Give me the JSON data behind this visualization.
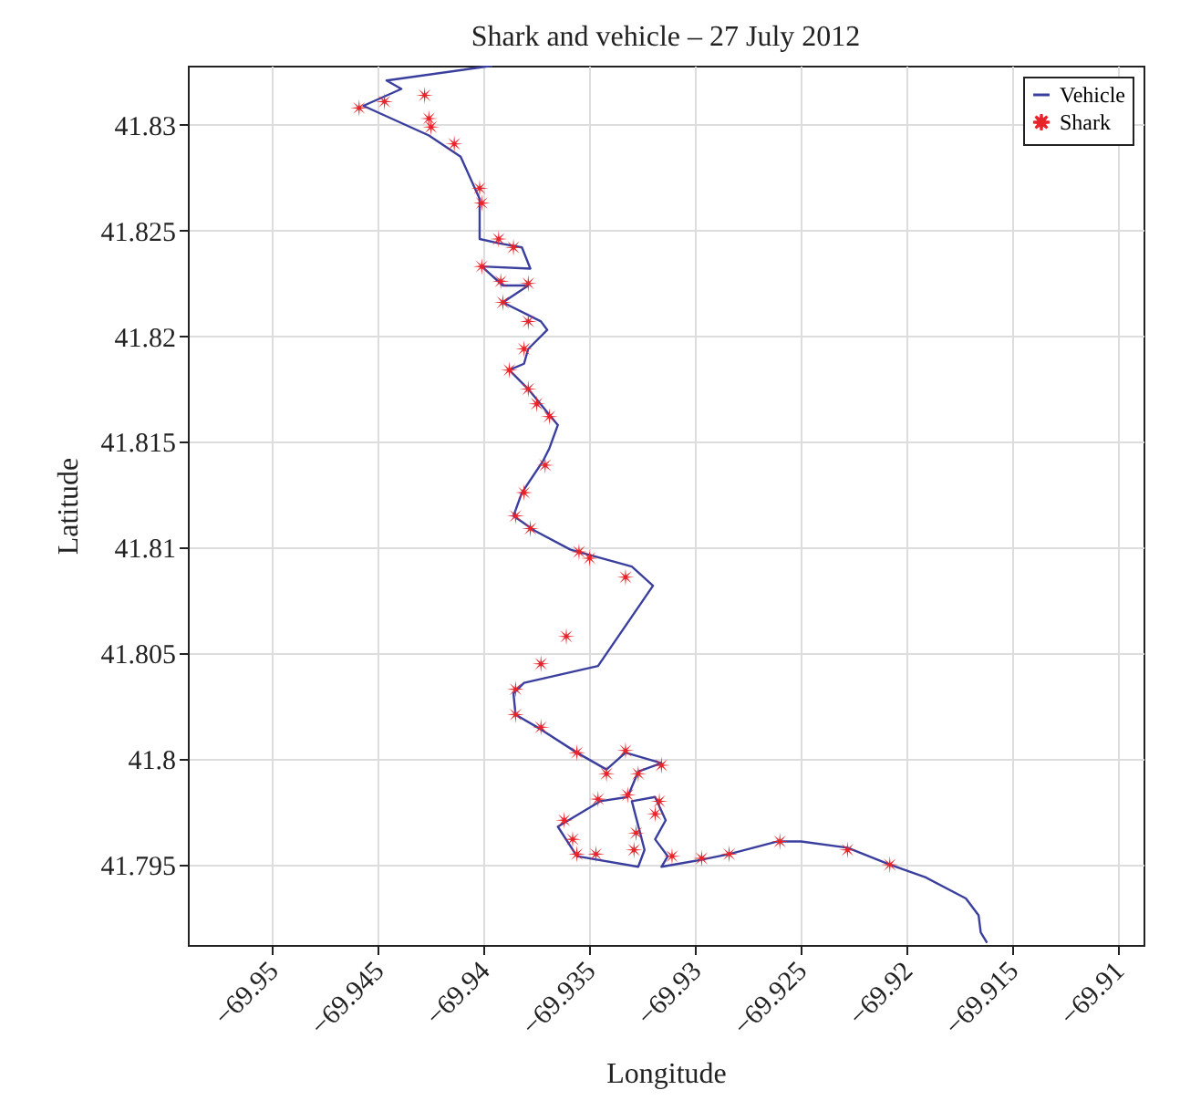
{
  "chart_data": {
    "type": "line",
    "title": "Shark and vehicle – 27 July 2012",
    "xlabel": "Longitude",
    "ylabel": "Latitude",
    "xlim": [
      -69.954,
      -69.9088
    ],
    "ylim": [
      41.7912,
      41.8328
    ],
    "xticks": [
      -69.95,
      -69.945,
      -69.94,
      -69.935,
      -69.93,
      -69.925,
      -69.92,
      -69.915,
      -69.91
    ],
    "yticks": [
      41.795,
      41.8,
      41.805,
      41.81,
      41.815,
      41.82,
      41.825,
      41.83
    ],
    "grid": true,
    "legend": "top right",
    "series": [
      {
        "name": "Vehicle",
        "type": "line",
        "color": "#3a3f9e",
        "line_style": "solid",
        "x": [
          -69.9396,
          -69.9446,
          -69.9439,
          -69.9457,
          -69.9426,
          -69.9411,
          -69.9402,
          -69.9402,
          -69.9393,
          -69.9382,
          -69.9378,
          -69.9401,
          -69.9391,
          -69.9379,
          -69.9391,
          -69.9373,
          -69.937,
          -69.9379,
          -69.9381,
          -69.9388,
          -69.9379,
          -69.937,
          -69.9365,
          -69.9369,
          -69.9372,
          -69.9382,
          -69.9386,
          -69.9376,
          -69.9359,
          -69.933,
          -69.932,
          -69.9346,
          -69.9381,
          -69.9386,
          -69.9385,
          -69.9373,
          -69.9356,
          -69.9342,
          -69.9333,
          -69.9316,
          -69.9327,
          -69.9332,
          -69.9345,
          -69.9365,
          -69.9356,
          -69.9327,
          -69.9324,
          -69.933,
          -69.9319,
          -69.9314,
          -69.9319,
          -69.9313,
          -69.9316,
          -69.9299,
          -69.9284,
          -69.9261,
          -69.925,
          -69.9228,
          -69.9208,
          -69.9191,
          -69.9172,
          -69.9166,
          -69.9165,
          -69.9162
        ],
        "values": [
          41.8328,
          41.8321,
          41.8317,
          41.8309,
          41.8295,
          41.8285,
          41.8265,
          41.8246,
          41.8244,
          41.8242,
          41.8232,
          41.8233,
          41.8224,
          41.8224,
          41.8216,
          41.8207,
          41.8203,
          41.8194,
          41.8187,
          41.8184,
          41.8175,
          41.8164,
          41.8158,
          41.8147,
          41.8141,
          41.8126,
          41.8115,
          41.8108,
          41.8099,
          41.8091,
          41.8082,
          41.8044,
          41.8036,
          41.8031,
          41.8021,
          41.8014,
          41.8003,
          41.7995,
          41.8003,
          41.7998,
          41.7994,
          41.7982,
          41.798,
          41.7968,
          41.7954,
          41.7949,
          41.7957,
          41.798,
          41.7982,
          41.7971,
          41.7962,
          41.7954,
          41.7949,
          41.7952,
          41.7955,
          41.7961,
          41.7961,
          41.7958,
          41.795,
          41.7944,
          41.7934,
          41.7926,
          41.7918,
          41.7913
        ]
      },
      {
        "name": "Shark",
        "type": "scatter",
        "color": "#e8232a",
        "marker": "star",
        "x": [
          -69.9459,
          -69.9447,
          -69.9428,
          -69.9426,
          -69.9425,
          -69.9414,
          -69.9402,
          -69.9401,
          -69.9393,
          -69.9386,
          -69.9401,
          -69.9392,
          -69.9379,
          -69.9391,
          -69.9379,
          -69.9381,
          -69.9388,
          -69.9379,
          -69.9375,
          -69.9369,
          -69.9371,
          -69.9381,
          -69.9385,
          -69.9378,
          -69.9355,
          -69.935,
          -69.9333,
          -69.9361,
          -69.9373,
          -69.9385,
          -69.9385,
          -69.9373,
          -69.9356,
          -69.9333,
          -69.9316,
          -69.9342,
          -69.9327,
          -69.9346,
          -69.9332,
          -69.9317,
          -69.9362,
          -69.9319,
          -69.9358,
          -69.9356,
          -69.9347,
          -69.9328,
          -69.9329,
          -69.9311,
          -69.9297,
          -69.9284,
          -69.926,
          -69.9228,
          -69.9208
        ],
        "values": [
          41.8308,
          41.8311,
          41.8314,
          41.8303,
          41.8299,
          41.8291,
          41.827,
          41.8263,
          41.8246,
          41.8242,
          41.8233,
          41.8226,
          41.8225,
          41.8216,
          41.8207,
          41.8194,
          41.8184,
          41.8175,
          41.8168,
          41.8162,
          41.8139,
          41.8126,
          41.8115,
          41.8109,
          41.8098,
          41.8095,
          41.8086,
          41.8058,
          41.8045,
          41.8033,
          41.8021,
          41.8015,
          41.8003,
          41.8004,
          41.7997,
          41.7993,
          41.7993,
          41.7981,
          41.7983,
          41.798,
          41.7971,
          41.7974,
          41.7962,
          41.7955,
          41.7955,
          41.7965,
          41.7957,
          41.7954,
          41.7953,
          41.7955,
          41.7961,
          41.7957,
          41.795
        ]
      }
    ]
  }
}
